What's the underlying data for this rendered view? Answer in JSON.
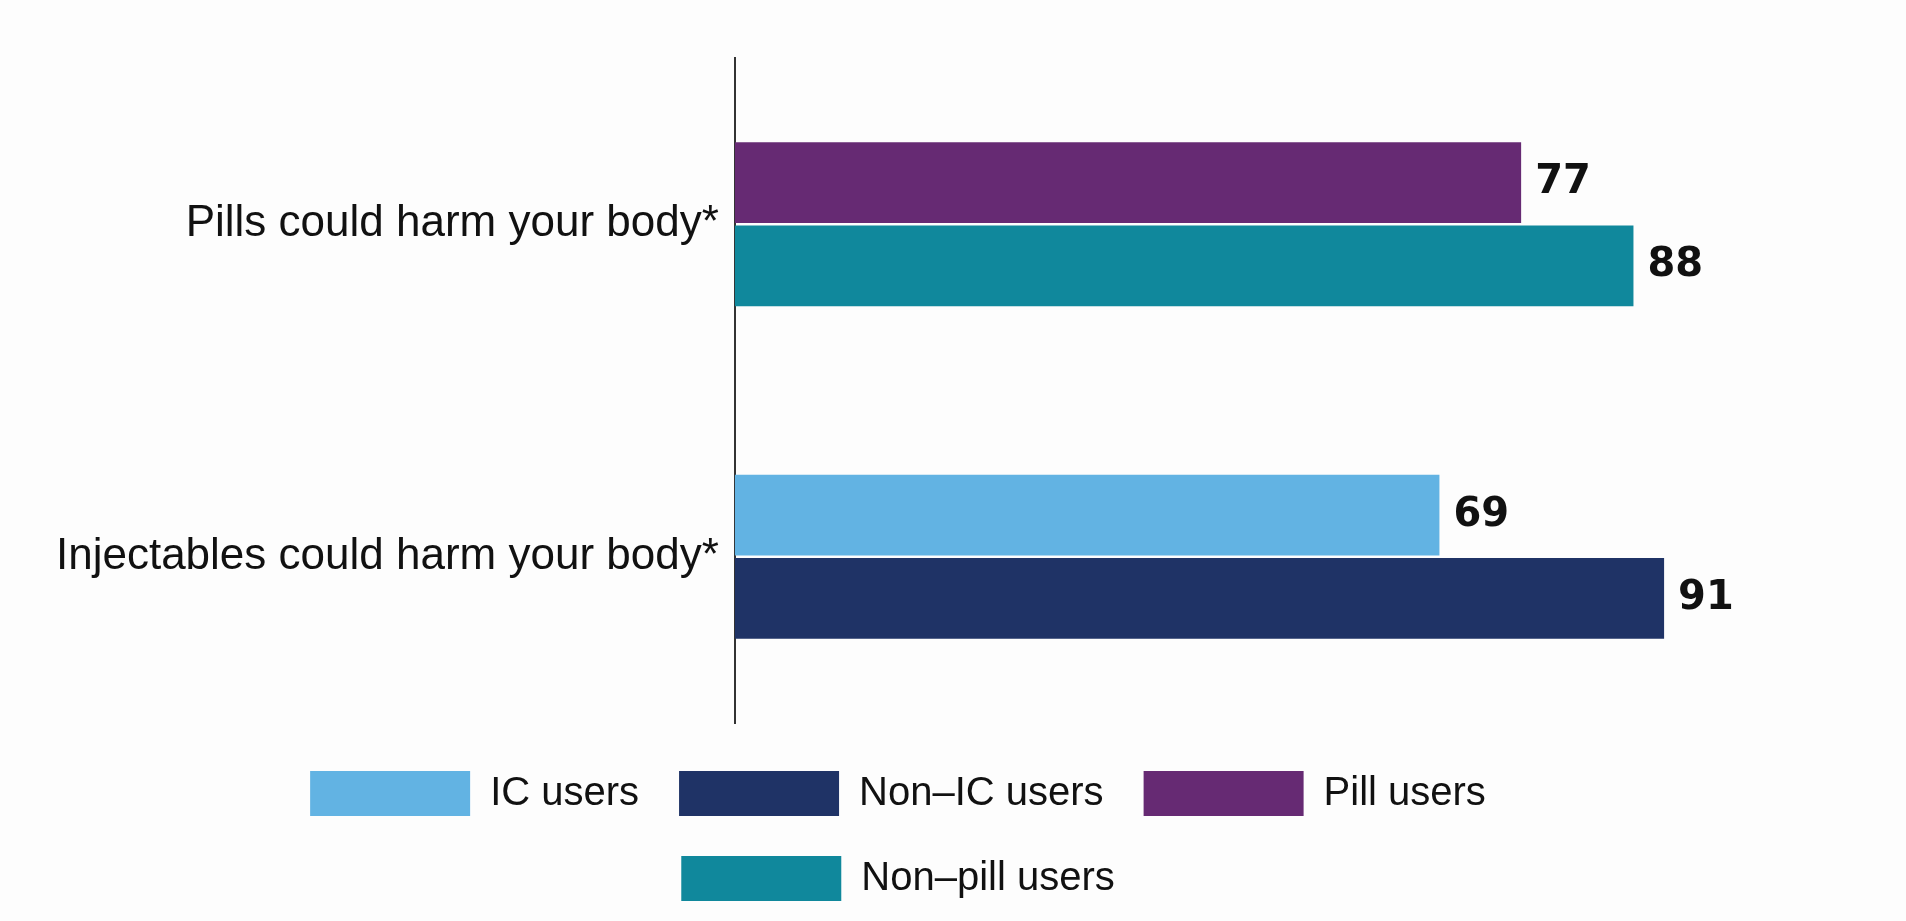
{
  "chart_data": {
    "type": "bar",
    "orientation": "horizontal",
    "categories": [
      "Pills could harm your body*",
      "Injectables could harm your body*"
    ],
    "series": [
      {
        "name": "IC users",
        "color": "#62b3e3",
        "values": [
          null,
          69
        ]
      },
      {
        "name": "Non–IC users",
        "color": "#1f3366",
        "values": [
          null,
          91
        ]
      },
      {
        "name": "Pill users",
        "color": "#662a73",
        "values": [
          77,
          null
        ]
      },
      {
        "name": "Non–pill users",
        "color": "#10889c",
        "values": [
          88,
          null
        ]
      }
    ],
    "data_labels": true,
    "legend": "bottom",
    "grid": false,
    "tick_labels": "y"
  }
}
